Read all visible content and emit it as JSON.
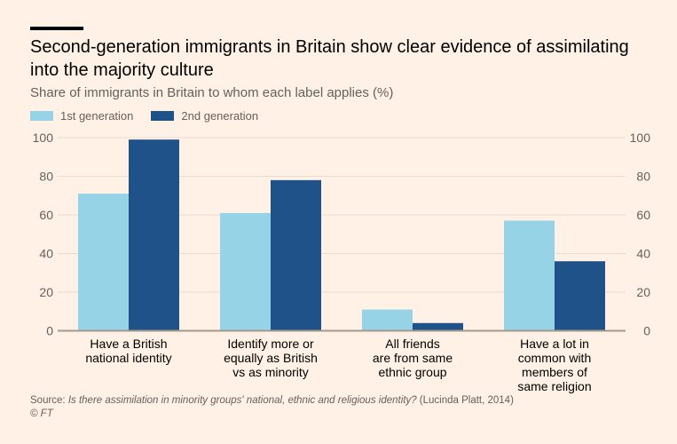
{
  "chart_data": {
    "type": "bar",
    "title": "Second-generation immigrants in Britain show clear evidence of assimilating into the majority culture",
    "subtitle": "Share of immigrants in Britain to whom each label applies (%)",
    "categories": [
      [
        "Have a British",
        "national identity"
      ],
      [
        "Identify more or",
        "equally as British",
        "vs as minority"
      ],
      [
        "All friends",
        "are from same",
        "ethnic group"
      ],
      [
        "Have a lot in",
        "common with",
        "members of",
        "same religion"
      ]
    ],
    "series": [
      {
        "name": "1st generation",
        "color": "#96d3e6",
        "values": [
          71,
          61,
          11,
          57
        ]
      },
      {
        "name": "2nd generation",
        "color": "#1f5289",
        "values": [
          99,
          78,
          4,
          36
        ]
      }
    ],
    "ylim": [
      0,
      100
    ],
    "yticks": [
      0,
      20,
      40,
      60,
      80,
      100
    ],
    "grid": true,
    "legend": "top-left",
    "xlabel": "",
    "ylabel": ""
  },
  "source": {
    "prefix": "Source: ",
    "title": "Is there assimilation in minority groups' national, ethnic and religious identity?",
    "suffix": " (Lucinda Platt, 2014)",
    "copyright": "© FT"
  }
}
